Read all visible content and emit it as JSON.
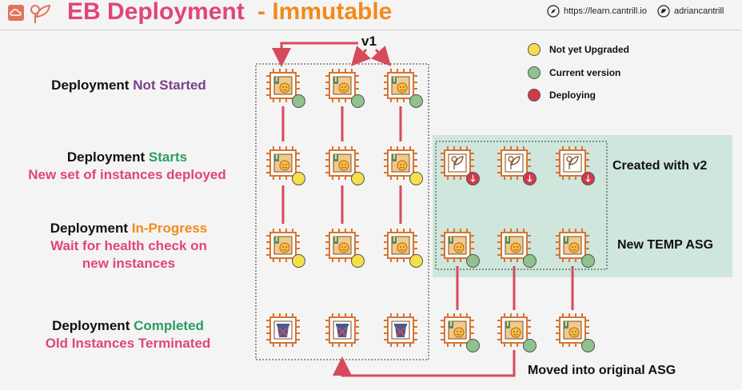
{
  "header": {
    "title_main": "EB Deployment",
    "title_sub": "- Immutable",
    "link_url": "https://learn.cantrill.io",
    "handle": "adriancantrill"
  },
  "stages": [
    {
      "prefix": "Deployment",
      "status": "Not Started",
      "status_color": "#7b3f8c",
      "detail": ""
    },
    {
      "prefix": "Deployment",
      "status": "Starts",
      "status_color": "#2a9d63",
      "detail": "New set of instances deployed"
    },
    {
      "prefix": "Deployment",
      "status": "In-Progress",
      "status_color": "#f28a1a",
      "detail_line1": "Wait for health check on",
      "detail_line2": "new instances"
    },
    {
      "prefix": "Deployment",
      "status": "Completed",
      "status_color": "#2a9d63",
      "detail": "Old Instances Terminated"
    }
  ],
  "legend": [
    {
      "label": "Not yet Upgraded",
      "color": "#f5e04b"
    },
    {
      "label": "Current version",
      "color": "#8fc28d"
    },
    {
      "label": "Deploying",
      "color": "#d13a4a"
    }
  ],
  "version_label": "v1",
  "labels": {
    "created": "Created with v2",
    "temp_asg": "New TEMP ASG",
    "moved": "Moved into original ASG"
  },
  "colors": {
    "chip_orange": "#d9732f",
    "connector_red": "#d64a5b",
    "temp_panel": "#cfe6dc"
  }
}
